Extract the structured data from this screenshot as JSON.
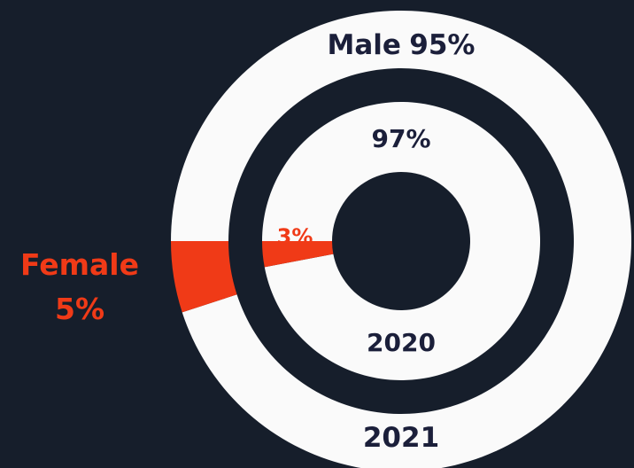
{
  "chart_data": {
    "type": "donut",
    "categories": [
      "Male",
      "Female"
    ],
    "colors": [
      "#fafafa",
      "#f03a17"
    ],
    "label_color": "#1b1f3a",
    "series": [
      {
        "name": "2021",
        "values": [
          95,
          5
        ],
        "value_labels": [
          "95%",
          "5%"
        ]
      },
      {
        "name": "2020",
        "values": [
          97,
          3
        ],
        "value_labels": [
          "97%",
          "3%"
        ]
      }
    ]
  }
}
